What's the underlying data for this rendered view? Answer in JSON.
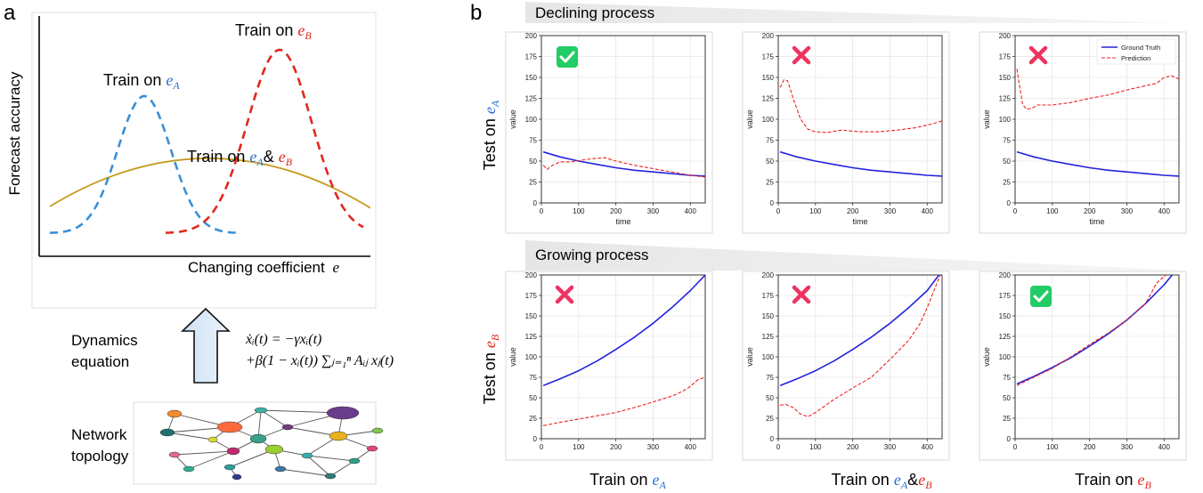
{
  "panel_a": {
    "letter": "a",
    "y_axis_label": "Forecast accuracy",
    "x_axis_label": "Changing coefficient",
    "x_axis_symbol": "e",
    "curve_labels": {
      "train_a": {
        "prefix": "Train on ",
        "sym": "e",
        "sub": "A"
      },
      "train_b": {
        "prefix": "Train on ",
        "sym": "e",
        "sub": "B"
      },
      "train_ab": {
        "prefix": "Train on ",
        "sym1": "e",
        "sub1": "A",
        "amp": "& ",
        "sym2": "e",
        "sub2": "B"
      }
    },
    "dynamics_label_1": "Dynamics",
    "dynamics_label_2": "equation",
    "equation_line_1": "ẋᵢ(t) = −γxᵢ(t)",
    "equation_line_2": "+β(1 − xᵢ(t)) ∑ⱼ₌₁ⁿ Aᵢⱼ xⱼ(t)",
    "network_label_1": "Network",
    "network_label_2": "topology"
  },
  "panel_b": {
    "letter": "b",
    "banner_top": "Declining process",
    "banner_bottom": "Growing process",
    "row_label_top": {
      "prefix": "Test on ",
      "sym": "e",
      "sub": "A"
    },
    "row_label_bottom": {
      "prefix": "Test on ",
      "sym": "e",
      "sub": "B"
    },
    "col_labels": [
      {
        "prefix": "Train on ",
        "sym": "e",
        "sub": "A"
      },
      {
        "prefix": "Train on ",
        "sym1": "e",
        "sub1": "A",
        "amp": "&",
        "sym2": "e",
        "sub2": "B"
      },
      {
        "prefix": "Train on ",
        "sym": "e",
        "sub": "B"
      }
    ],
    "legend": {
      "ground_truth": "Ground Truth",
      "prediction": "Prediction"
    }
  },
  "colors": {
    "blue_label": "#2a6fd0",
    "red_label": "#e0281c",
    "curve_a": "#3a8fd6",
    "curve_b": "#e0281c",
    "curve_ab": "#c79a1f",
    "ground_truth": "#2222dd",
    "prediction": "#ee2222",
    "check": "#22cc66",
    "cross": "#ee3360"
  },
  "icons": {
    "good": "check-mark-icon",
    "bad": "cross-mark-icon",
    "arrow": "up-arrow-icon"
  },
  "chart_data": [
    {
      "type": "line",
      "row": "Test on eA",
      "col": "Train on eA",
      "xlabel": "time",
      "ylabel": "value",
      "xlim": [
        0,
        440
      ],
      "ylim": [
        0,
        200
      ],
      "xticks": [
        0,
        100,
        200,
        300,
        400
      ],
      "yticks": [
        0,
        25,
        50,
        75,
        100,
        125,
        150,
        175,
        200
      ],
      "verdict": "good",
      "series": [
        {
          "name": "Ground Truth",
          "x": [
            5,
            50,
            100,
            150,
            200,
            250,
            300,
            350,
            400,
            440
          ],
          "values": [
            61,
            55,
            50,
            46,
            42,
            39,
            37,
            35,
            33,
            32
          ]
        },
        {
          "name": "Prediction",
          "x": [
            5,
            15,
            30,
            50,
            80,
            120,
            170,
            200,
            250,
            300,
            350,
            400,
            440
          ],
          "values": [
            45,
            40,
            45,
            49,
            49,
            52,
            54,
            50,
            45,
            41,
            37,
            33,
            31
          ]
        }
      ]
    },
    {
      "type": "line",
      "row": "Test on eA",
      "col": "Train on eA&eB",
      "xlabel": "time",
      "ylabel": "value",
      "xlim": [
        0,
        440
      ],
      "ylim": [
        0,
        200
      ],
      "xticks": [
        0,
        100,
        200,
        300,
        400
      ],
      "yticks": [
        0,
        25,
        50,
        75,
        100,
        125,
        150,
        175,
        200
      ],
      "verdict": "bad",
      "series": [
        {
          "name": "Ground Truth",
          "x": [
            5,
            50,
            100,
            150,
            200,
            250,
            300,
            350,
            400,
            440
          ],
          "values": [
            61,
            55,
            50,
            46,
            42,
            39,
            37,
            35,
            33,
            32
          ]
        },
        {
          "name": "Prediction",
          "x": [
            5,
            15,
            25,
            40,
            60,
            80,
            100,
            130,
            170,
            220,
            270,
            320,
            370,
            410,
            440
          ],
          "values": [
            138,
            147,
            146,
            125,
            100,
            88,
            85,
            84,
            87,
            85,
            85,
            87,
            90,
            94,
            98
          ]
        }
      ]
    },
    {
      "type": "line",
      "row": "Test on eA",
      "col": "Train on eB",
      "xlabel": "time",
      "ylabel": "value",
      "xlim": [
        0,
        440
      ],
      "ylim": [
        0,
        200
      ],
      "xticks": [
        0,
        100,
        200,
        300,
        400
      ],
      "yticks": [
        0,
        25,
        50,
        75,
        100,
        125,
        150,
        175,
        200
      ],
      "verdict": "bad",
      "legend": "top-right",
      "series": [
        {
          "name": "Ground Truth",
          "x": [
            5,
            50,
            100,
            150,
            200,
            250,
            300,
            350,
            400,
            440
          ],
          "values": [
            61,
            55,
            50,
            46,
            42,
            39,
            37,
            35,
            33,
            32
          ]
        },
        {
          "name": "Prediction",
          "x": [
            5,
            12,
            20,
            30,
            45,
            60,
            80,
            100,
            150,
            200,
            250,
            300,
            350,
            380,
            400,
            420,
            440
          ],
          "values": [
            160,
            140,
            118,
            112,
            113,
            117,
            117,
            117,
            120,
            125,
            129,
            135,
            140,
            143,
            150,
            152,
            148
          ]
        }
      ]
    },
    {
      "type": "line",
      "row": "Test on eB",
      "col": "Train on eA",
      "xlabel": "",
      "ylabel": "value",
      "xlim": [
        0,
        440
      ],
      "ylim": [
        0,
        200
      ],
      "xticks": [
        0,
        100,
        200,
        300,
        400
      ],
      "yticks": [
        0,
        25,
        50,
        75,
        100,
        125,
        150,
        175,
        200
      ],
      "verdict": "bad",
      "series": [
        {
          "name": "Ground Truth",
          "x": [
            5,
            50,
            100,
            150,
            200,
            250,
            300,
            350,
            400,
            440
          ],
          "values": [
            65,
            73,
            83,
            95,
            109,
            124,
            141,
            160,
            181,
            200
          ]
        },
        {
          "name": "Prediction",
          "x": [
            5,
            50,
            100,
            150,
            200,
            250,
            300,
            350,
            380,
            400,
            420,
            440
          ],
          "values": [
            16,
            20,
            24,
            28,
            32,
            38,
            45,
            52,
            58,
            64,
            72,
            75
          ]
        }
      ]
    },
    {
      "type": "line",
      "row": "Test on eB",
      "col": "Train on eA&eB",
      "xlabel": "",
      "ylabel": "value",
      "xlim": [
        0,
        440
      ],
      "ylim": [
        0,
        200
      ],
      "xticks": [
        0,
        100,
        200,
        300,
        400
      ],
      "yticks": [
        0,
        25,
        50,
        75,
        100,
        125,
        150,
        175,
        200
      ],
      "verdict": "bad",
      "series": [
        {
          "name": "Ground Truth",
          "x": [
            5,
            50,
            100,
            150,
            200,
            250,
            300,
            350,
            400,
            440
          ],
          "values": [
            65,
            73,
            83,
            95,
            109,
            124,
            141,
            160,
            181,
            205
          ]
        },
        {
          "name": "Prediction",
          "x": [
            5,
            20,
            40,
            60,
            80,
            100,
            150,
            200,
            250,
            300,
            350,
            380,
            400,
            420,
            440
          ],
          "values": [
            41,
            42,
            38,
            30,
            27,
            32,
            48,
            62,
            75,
            97,
            120,
            140,
            160,
            183,
            205
          ]
        }
      ]
    },
    {
      "type": "line",
      "row": "Test on eB",
      "col": "Train on eB",
      "xlabel": "",
      "ylabel": "value",
      "xlim": [
        0,
        440
      ],
      "ylim": [
        0,
        200
      ],
      "xticks": [
        0,
        100,
        200,
        300,
        400
      ],
      "yticks": [
        0,
        25,
        50,
        75,
        100,
        125,
        150,
        175,
        200
      ],
      "verdict": "good",
      "series": [
        {
          "name": "Ground Truth",
          "x": [
            5,
            50,
            100,
            150,
            200,
            250,
            300,
            350,
            400,
            440
          ],
          "values": [
            67,
            76,
            87,
            99,
            113,
            128,
            145,
            165,
            188,
            210
          ]
        },
        {
          "name": "Prediction",
          "x": [
            5,
            50,
            100,
            150,
            200,
            250,
            300,
            350,
            380,
            400,
            420,
            440
          ],
          "values": [
            65,
            75,
            86,
            100,
            115,
            129,
            145,
            165,
            190,
            198,
            205,
            212
          ]
        }
      ]
    }
  ]
}
